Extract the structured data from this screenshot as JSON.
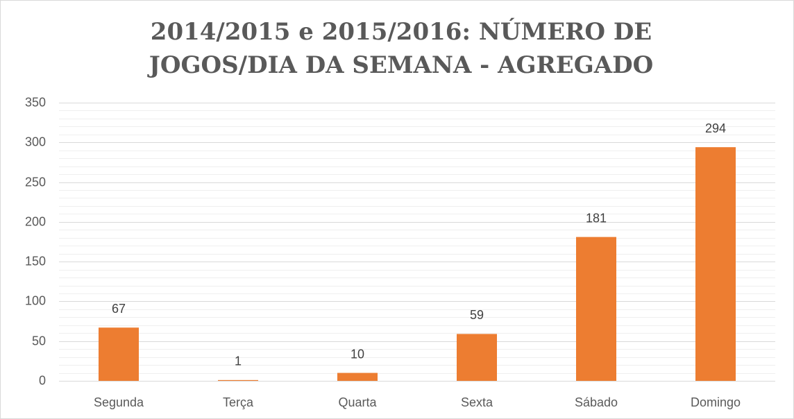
{
  "chart_data": {
    "type": "bar",
    "title": "2014/2015 e 2015/2016: NÚMERO DE JOGOS/DIA DA SEMANA - AGREGADO",
    "categories": [
      "Segunda",
      "Terça",
      "Quarta",
      "Sexta",
      "Sábado",
      "Domingo"
    ],
    "values": [
      67,
      1,
      10,
      59,
      181,
      294
    ],
    "color": "#ed7d31",
    "ylim": [
      0,
      350
    ],
    "yticks": [
      0,
      50,
      100,
      150,
      200,
      250,
      300,
      350
    ],
    "minor_yticks": [
      10,
      20,
      30,
      40,
      60,
      70,
      80,
      90,
      110,
      120,
      130,
      140,
      160,
      170,
      180,
      190,
      210,
      220,
      230,
      240,
      260,
      270,
      280,
      290,
      310,
      320,
      330,
      340
    ],
    "grid": true,
    "data_labels": true
  }
}
